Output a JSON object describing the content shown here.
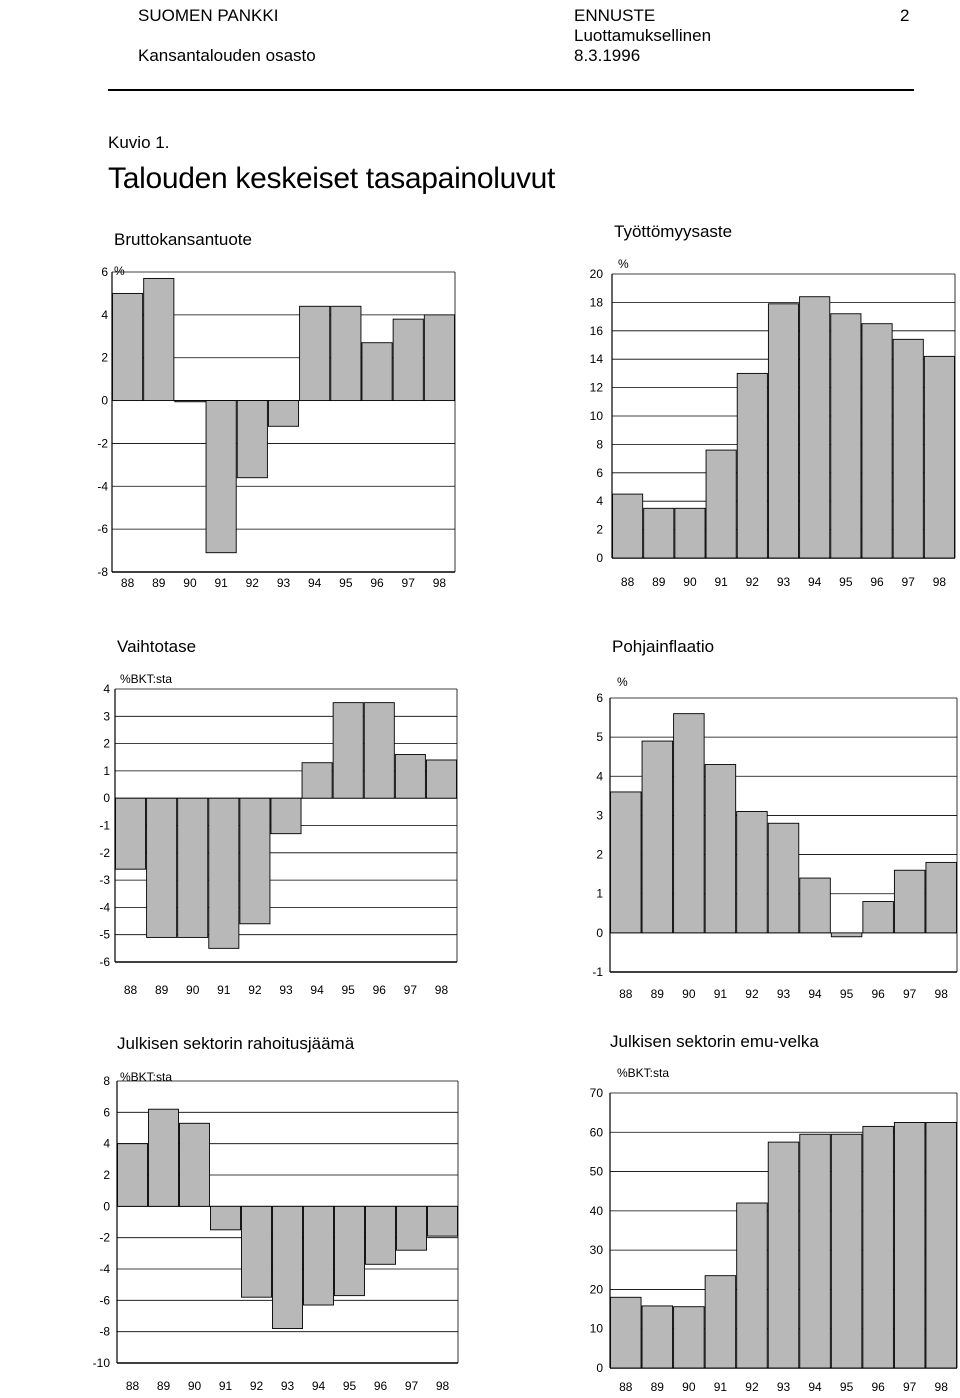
{
  "header": {
    "org": "SUOMEN PANKKI",
    "dept": "Kansantalouden osasto",
    "doc_type": "ENNUSTE",
    "confidential": "Luottamuksellinen",
    "date": "8.3.1996",
    "page": "2"
  },
  "figure_label": "Kuvio 1.",
  "main_title": "Talouden keskeiset tasapainoluvut",
  "bar_color": "#b8b8b8",
  "chart_data": [
    {
      "type": "bar",
      "title": "Bruttokansantuote",
      "ylabel": "%",
      "categories": [
        "88",
        "89",
        "90",
        "91",
        "92",
        "93",
        "94",
        "95",
        "96",
        "97",
        "98"
      ],
      "values": [
        5.0,
        5.7,
        0.0,
        -7.1,
        -3.6,
        -1.2,
        4.4,
        4.4,
        2.7,
        3.8,
        4.0
      ],
      "ylim": [
        -8,
        6
      ],
      "yticks": [
        6,
        4,
        2,
        0,
        -2,
        -4,
        -6,
        -8
      ],
      "grid": true
    },
    {
      "type": "bar",
      "title": "Työttömyysaste",
      "ylabel": "%",
      "categories": [
        "88",
        "89",
        "90",
        "91",
        "92",
        "93",
        "94",
        "95",
        "96",
        "97",
        "98"
      ],
      "values": [
        4.5,
        3.5,
        3.5,
        7.6,
        13.0,
        17.9,
        18.4,
        17.2,
        16.5,
        15.4,
        14.2
      ],
      "ylim": [
        0,
        20
      ],
      "yticks": [
        20,
        18,
        16,
        14,
        12,
        10,
        8,
        6,
        4,
        2,
        0
      ],
      "grid": true
    },
    {
      "type": "bar",
      "title": "Vaihtotase",
      "ylabel": "%BKT:sta",
      "categories": [
        "88",
        "89",
        "90",
        "91",
        "92",
        "93",
        "94",
        "95",
        "96",
        "97",
        "98"
      ],
      "values": [
        -2.6,
        -5.1,
        -5.1,
        -5.5,
        -4.6,
        -1.3,
        1.3,
        3.5,
        3.5,
        1.6,
        1.4
      ],
      "ylim": [
        -6,
        4
      ],
      "yticks": [
        4,
        3,
        2,
        1,
        0,
        -1,
        -2,
        -3,
        -4,
        -5,
        -6
      ],
      "grid": true
    },
    {
      "type": "bar",
      "title": "Pohjainflaatio",
      "ylabel": "%",
      "categories": [
        "88",
        "89",
        "90",
        "91",
        "92",
        "93",
        "94",
        "95",
        "96",
        "97",
        "98"
      ],
      "values": [
        3.6,
        4.9,
        5.6,
        4.3,
        3.1,
        2.8,
        1.4,
        -0.1,
        0.8,
        1.6,
        1.8
      ],
      "ylim": [
        -1,
        6
      ],
      "yticks": [
        6,
        5,
        4,
        3,
        2,
        1,
        0,
        -1
      ],
      "grid": true
    },
    {
      "type": "bar",
      "title": "Julkisen sektorin rahoitusjäämä",
      "ylabel": "%BKT:sta",
      "categories": [
        "88",
        "89",
        "90",
        "91",
        "92",
        "93",
        "94",
        "95",
        "96",
        "97",
        "98"
      ],
      "values": [
        4.0,
        6.2,
        5.3,
        -1.5,
        -5.8,
        -7.8,
        -6.3,
        -5.7,
        -3.7,
        -2.8,
        -1.9
      ],
      "ylim": [
        -10,
        8
      ],
      "yticks": [
        8,
        6,
        4,
        2,
        0,
        -2,
        -4,
        -6,
        -8,
        -10
      ],
      "grid": true
    },
    {
      "type": "bar",
      "title": "Julkisen sektorin emu-velka",
      "ylabel": "%BKT:sta",
      "categories": [
        "88",
        "89",
        "90",
        "91",
        "92",
        "93",
        "94",
        "95",
        "96",
        "97",
        "98"
      ],
      "values": [
        18.0,
        15.8,
        15.6,
        23.5,
        42.0,
        57.5,
        59.5,
        59.5,
        61.5,
        62.5,
        62.5
      ],
      "ylim": [
        0,
        70
      ],
      "yticks": [
        70,
        60,
        50,
        40,
        30,
        20,
        10,
        0
      ],
      "grid": true
    }
  ]
}
